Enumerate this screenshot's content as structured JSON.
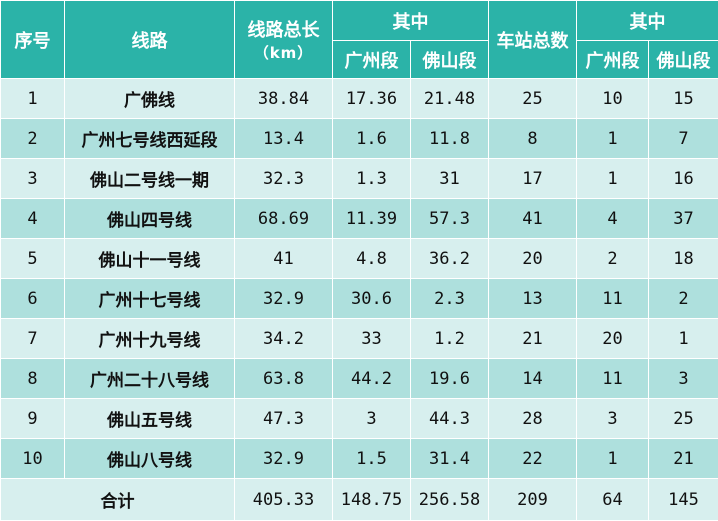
{
  "header": {
    "index": "序号",
    "line": "线路",
    "length_line1": "线路总长",
    "length_line2": "（km）",
    "length_group": "其中",
    "length_gz": "广州段",
    "length_fs": "佛山段",
    "stations": "车站总数",
    "stations_group": "其中",
    "stations_gz": "广州段",
    "stations_fs": "佛山段"
  },
  "rows": [
    {
      "no": "1",
      "name": "广佛线",
      "length": "38.84",
      "len_gz": "17.36",
      "len_fs": "21.48",
      "stations": "25",
      "st_gz": "10",
      "st_fs": "15"
    },
    {
      "no": "2",
      "name": "广州七号线西延段",
      "length": "13.4",
      "len_gz": "1.6",
      "len_fs": "11.8",
      "stations": "8",
      "st_gz": "1",
      "st_fs": "7"
    },
    {
      "no": "3",
      "name": "佛山二号线一期",
      "length": "32.3",
      "len_gz": "1.3",
      "len_fs": "31",
      "stations": "17",
      "st_gz": "1",
      "st_fs": "16"
    },
    {
      "no": "4",
      "name": "佛山四号线",
      "length": "68.69",
      "len_gz": "11.39",
      "len_fs": "57.3",
      "stations": "41",
      "st_gz": "4",
      "st_fs": "37"
    },
    {
      "no": "5",
      "name": "佛山十一号线",
      "length": "41",
      "len_gz": "4.8",
      "len_fs": "36.2",
      "stations": "20",
      "st_gz": "2",
      "st_fs": "18"
    },
    {
      "no": "6",
      "name": "广州十七号线",
      "length": "32.9",
      "len_gz": "30.6",
      "len_fs": "2.3",
      "stations": "13",
      "st_gz": "11",
      "st_fs": "2"
    },
    {
      "no": "7",
      "name": "广州十九号线",
      "length": "34.2",
      "len_gz": "33",
      "len_fs": "1.2",
      "stations": "21",
      "st_gz": "20",
      "st_fs": "1"
    },
    {
      "no": "8",
      "name": "广州二十八号线",
      "length": "63.8",
      "len_gz": "44.2",
      "len_fs": "19.6",
      "stations": "14",
      "st_gz": "11",
      "st_fs": "3"
    },
    {
      "no": "9",
      "name": "佛山五号线",
      "length": "47.3",
      "len_gz": "3",
      "len_fs": "44.3",
      "stations": "28",
      "st_gz": "3",
      "st_fs": "25"
    },
    {
      "no": "10",
      "name": "佛山八号线",
      "length": "32.9",
      "len_gz": "1.5",
      "len_fs": "31.4",
      "stations": "22",
      "st_gz": "1",
      "st_fs": "21"
    }
  ],
  "total": {
    "label": "合计",
    "length": "405.33",
    "len_gz": "148.75",
    "len_fs": "256.58",
    "stations": "209",
    "st_gz": "64",
    "st_fs": "145"
  },
  "colors": {
    "header_bg": "#2bb3a8",
    "row_light": "#d7efee",
    "row_dark": "#aee0dd"
  }
}
